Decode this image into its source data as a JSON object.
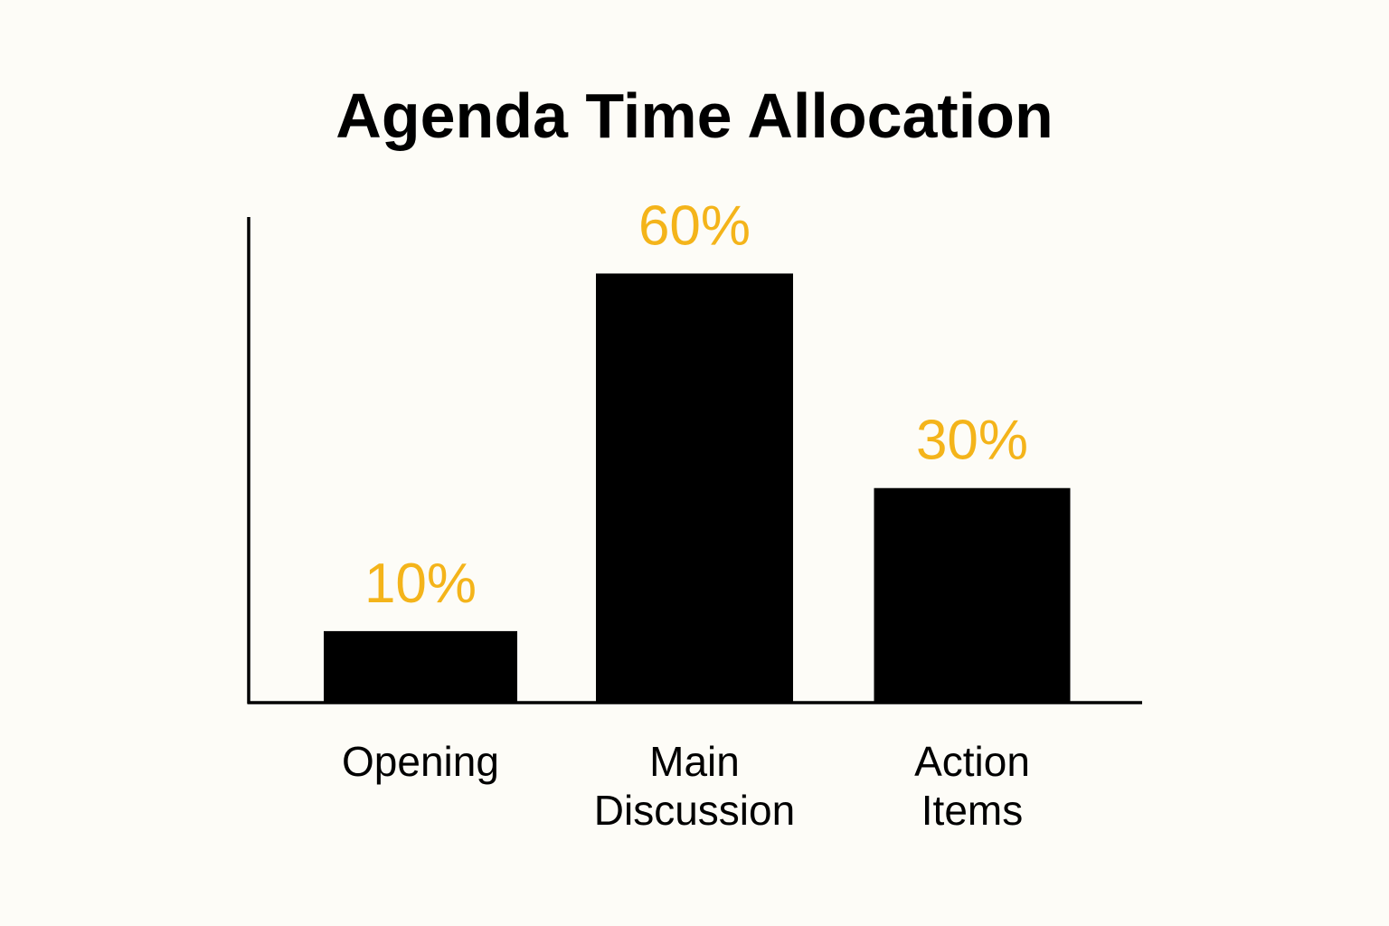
{
  "chart_data": {
    "type": "bar",
    "title": "Agenda Time Allocation",
    "categories": [
      [
        "Opening"
      ],
      [
        "Main",
        "Discussion"
      ],
      [
        "Action",
        "Items"
      ]
    ],
    "values": [
      10,
      60,
      30
    ],
    "value_labels": [
      "10%",
      "60%",
      "30%"
    ],
    "xlabel": "",
    "ylabel": "",
    "ylim": [
      0,
      66
    ],
    "grid": false,
    "legend": "none"
  },
  "colors": {
    "background": "#fdfcf7",
    "bar": "#000000",
    "value_label": "#f4b41a",
    "axis": "#000000",
    "text": "#000000"
  }
}
